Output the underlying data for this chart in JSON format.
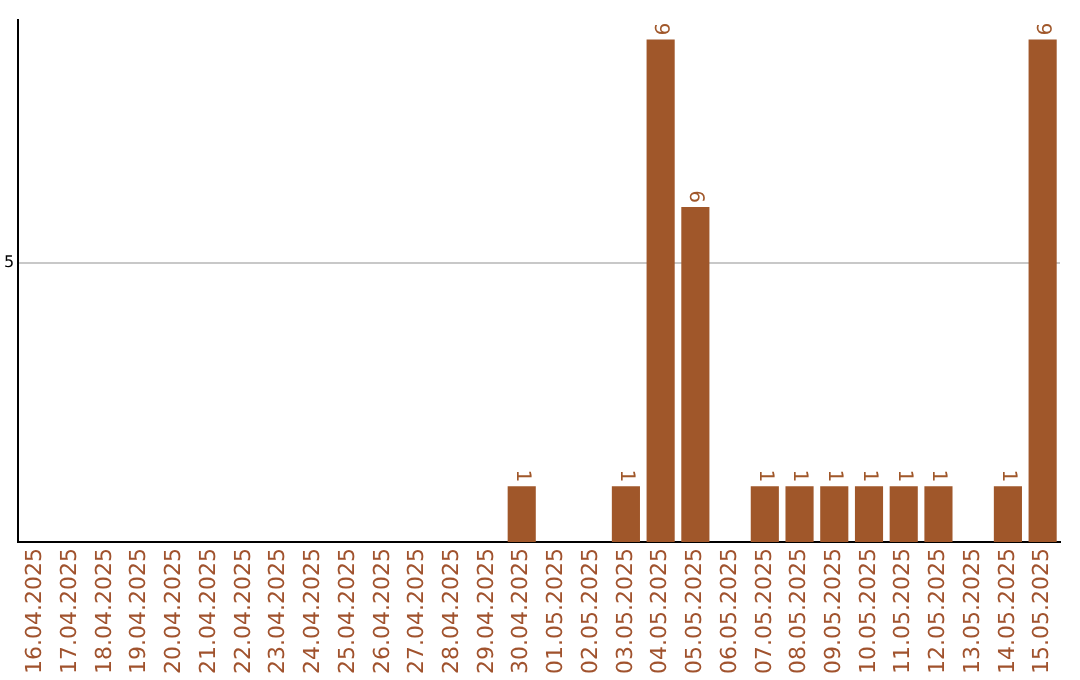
{
  "chart_data": {
    "type": "bar",
    "categories": [
      "16.04.2025",
      "17.04.2025",
      "18.04.2025",
      "19.04.2025",
      "20.04.2025",
      "21.04.2025",
      "22.04.2025",
      "23.04.2025",
      "24.04.2025",
      "25.04.2025",
      "26.04.2025",
      "27.04.2025",
      "28.04.2025",
      "29.04.2025",
      "30.04.2025",
      "01.05.2025",
      "02.05.2025",
      "03.05.2025",
      "04.05.2025",
      "05.05.2025",
      "06.05.2025",
      "07.05.2025",
      "08.05.2025",
      "09.05.2025",
      "10.05.2025",
      "11.05.2025",
      "12.05.2025",
      "13.05.2025",
      "14.05.2025",
      "15.05.2025"
    ],
    "values": [
      null,
      null,
      null,
      null,
      null,
      null,
      null,
      null,
      null,
      null,
      null,
      null,
      null,
      null,
      1,
      null,
      null,
      1,
      9,
      6,
      null,
      1,
      1,
      1,
      1,
      1,
      1,
      null,
      1,
      9
    ],
    "color": "#a0572a",
    "ylim": [
      0,
      9.35
    ],
    "yticks": [
      5
    ],
    "grid": "y",
    "data_labels": true,
    "legend": false
  }
}
